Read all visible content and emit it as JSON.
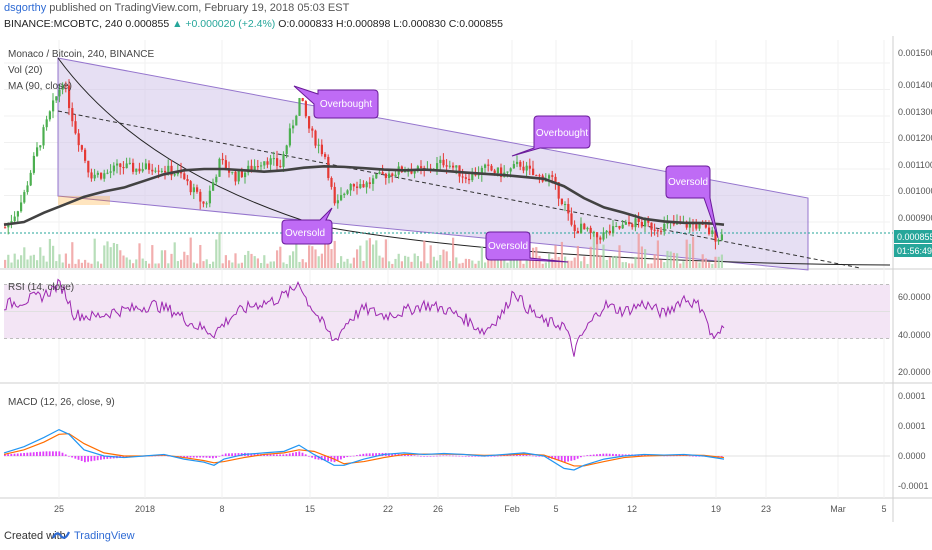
{
  "header": {
    "user": "dsgorthy",
    "published": "published on TradingView.com, February 19, 2018 05:03 EST",
    "symbol_line": "BINANCE:MCOBTC, 240 0.000855",
    "change": "+0.000020 (+2.4%)",
    "ohlc": "O:0.000833 H:0.000898 L:0.000830 C:0.000855"
  },
  "legend": {
    "main": "Monaco / Bitcoin, 240, BINANCE",
    "vol": "Vol (20)",
    "ma": "MA (90, close)",
    "rsi": "RSI (14, close)",
    "macd": "MACD (12, 26, close, 9)"
  },
  "annotations": [
    {
      "text": "Overbought"
    },
    {
      "text": "Overbought"
    },
    {
      "text": "Oversold"
    },
    {
      "text": "Oversold"
    },
    {
      "text": "Oversold"
    }
  ],
  "price_label": "0.000855",
  "countdown": "01:56:49",
  "footer": {
    "created": "Created with",
    "brand": "TradingView"
  },
  "colors": {
    "channel_fill": "#d1c4e9",
    "channel_line": "#9575cd",
    "ma_line": "#424242",
    "rsi_line": "#9c27b0",
    "macd_line": "#2196f3",
    "signal_line": "#ff6d00",
    "hist": "#e040fb",
    "bull": "#4caf50",
    "bear": "#e53935",
    "label_bg": "#bf6bf5"
  },
  "chart_data": {
    "type": "line",
    "y_ticks": [
      "0.001500",
      "0.001400",
      "0.001300",
      "0.001200",
      "0.001100",
      "0.001000",
      "0.000900"
    ],
    "x_ticks": [
      "25",
      "2018",
      "8",
      "15",
      "22",
      "26",
      "Feb",
      "5",
      "12",
      "19",
      "23",
      "Mar",
      "5"
    ],
    "rsi_ticks": [
      "60.0000",
      "40.0000",
      "20.0000"
    ],
    "macd_ticks": [
      "0.0001",
      "0.0001",
      "0.0000",
      "-0.0001"
    ],
    "price_anchors": {
      "x": [
        0,
        8,
        18,
        30,
        45,
        58,
        70,
        85,
        100,
        115,
        130,
        150,
        175,
        200,
        215,
        230,
        245,
        260,
        275,
        290,
        295,
        305,
        320,
        330,
        345,
        360,
        380,
        400,
        420,
        440,
        460,
        480,
        500,
        515,
        530,
        545,
        560,
        568,
        575,
        590,
        610,
        630,
        650,
        670,
        690,
        705,
        712,
        720
      ],
      "close": [
        0.00088,
        0.00092,
        0.00099,
        0.00115,
        0.00131,
        0.00144,
        0.00125,
        0.00108,
        0.00108,
        0.00111,
        0.0011,
        0.00111,
        0.00108,
        0.00096,
        0.00113,
        0.00107,
        0.0011,
        0.00114,
        0.00111,
        0.0013,
        0.00137,
        0.00124,
        0.00115,
        0.00095,
        0.00105,
        0.00104,
        0.00108,
        0.0011,
        0.00109,
        0.00113,
        0.00107,
        0.0011,
        0.00108,
        0.00112,
        0.00107,
        0.00107,
        0.00096,
        0.00086,
        0.00088,
        0.00084,
        0.00087,
        0.0009,
        0.00088,
        0.00089,
        0.00089,
        0.00086,
        0.00084,
        0.000855
      ]
    },
    "ma90": {
      "x": [
        0,
        20,
        40,
        60,
        80,
        100,
        120,
        140,
        160,
        180,
        200,
        220,
        240,
        260,
        280,
        300,
        320,
        340,
        360,
        380,
        400,
        420,
        440,
        460,
        480,
        500,
        520,
        540,
        560,
        580,
        600,
        620,
        640,
        660,
        680,
        700,
        715,
        720
      ],
      "y": [
        0.00089,
        0.0009,
        0.000935,
        0.000965,
        0.000995,
        0.001015,
        0.00103,
        0.001055,
        0.00108,
        0.001095,
        0.0011,
        0.0011,
        0.001095,
        0.00109,
        0.001095,
        0.001105,
        0.00111,
        0.001108,
        0.001103,
        0.001098,
        0.001095,
        0.001098,
        0.001093,
        0.001087,
        0.001082,
        0.001077,
        0.00107,
        0.001063,
        0.001035,
        0.00099,
        0.000955,
        0.000935,
        0.000912,
        0.000902,
        0.000897,
        0.000896,
        0.000892,
        0.00089
      ]
    },
    "rsi": {
      "x": [
        0,
        20,
        40,
        55,
        60,
        70,
        90,
        110,
        130,
        150,
        170,
        190,
        210,
        230,
        250,
        270,
        290,
        295,
        300,
        315,
        330,
        345,
        360,
        380,
        400,
        420,
        440,
        460,
        480,
        500,
        510,
        520,
        540,
        560,
        570,
        580,
        600,
        620,
        640,
        660,
        680,
        700,
        705,
        712,
        720
      ],
      "y": [
        55,
        58,
        62,
        70,
        66,
        48,
        46,
        50,
        52,
        55,
        50,
        40,
        34,
        48,
        55,
        58,
        66,
        74,
        62,
        45,
        28,
        44,
        52,
        47,
        50,
        55,
        52,
        45,
        35,
        50,
        66,
        55,
        42,
        40,
        20,
        35,
        55,
        50,
        56,
        48,
        60,
        52,
        35,
        30,
        38
      ]
    },
    "macd": {
      "x": [
        0,
        20,
        40,
        55,
        65,
        80,
        100,
        120,
        140,
        160,
        180,
        200,
        210,
        220,
        240,
        260,
        280,
        295,
        310,
        330,
        340,
        360,
        380,
        400,
        420,
        440,
        460,
        480,
        500,
        520,
        540,
        560,
        570,
        580,
        600,
        620,
        640,
        660,
        680,
        700,
        720
      ],
      "macd": [
        1e-05,
        3e-05,
        6e-05,
        8.5e-05,
        7e-05,
        2e-05,
        0.0,
        -5e-06,
        0.0,
        5e-06,
        -1e-05,
        -2e-05,
        -3e-05,
        -1e-05,
        5e-06,
        1e-05,
        1.5e-05,
        3.5e-05,
        5e-06,
        -3e-05,
        -3e-05,
        -1e-05,
        5e-06,
        1e-05,
        5e-06,
        8e-06,
        5e-06,
        0.0,
        5e-06,
        1e-05,
        0.0,
        -4e-05,
        -4.5e-05,
        -3e-05,
        -1e-05,
        0.0,
        5e-06,
        3e-06,
        5e-06,
        0.0,
        -1e-05
      ],
      "signal": [
        5e-06,
        2e-05,
        4.5e-05,
        7e-05,
        7.2e-05,
        4e-05,
        1e-05,
        0.0,
        0.0,
        3e-06,
        -5e-06,
        -1.5e-05,
        -2.2e-05,
        -1.8e-05,
        -5e-06,
        5e-06,
        1e-05,
        2e-05,
        1.5e-05,
        -1e-05,
        -2.5e-05,
        -1.8e-05,
        -5e-06,
        5e-06,
        6e-06,
        6e-06,
        5e-06,
        2e-06,
        3e-06,
        6e-06,
        3e-06,
        -2e-05,
        -3.2e-05,
        -3.2e-05,
        -1.8e-05,
        -5e-06,
        0.0,
        2e-06,
        3e-06,
        2e-06,
        -5e-06
      ]
    }
  }
}
